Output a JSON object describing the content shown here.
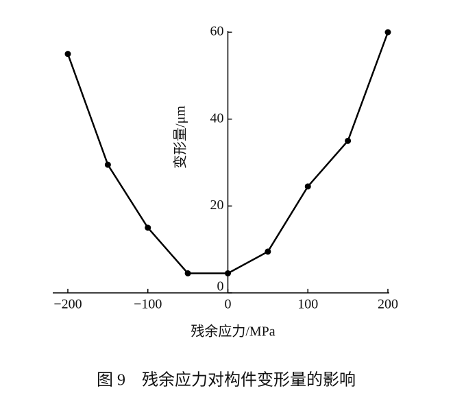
{
  "chart_data": {
    "type": "line",
    "caption": "图 9　残余应力对构件变形量的影响",
    "x_label": "残余应力/MPa",
    "y_label": "变形量/μm",
    "x": [
      -200,
      -150,
      -100,
      -50,
      0,
      50,
      100,
      150,
      200
    ],
    "series": [
      {
        "color": "#000000",
        "values": [
          55,
          29.5,
          15,
          4.5,
          4.5,
          9.5,
          24.5,
          35,
          60
        ]
      }
    ],
    "xlim": [
      -200,
      200
    ],
    "ylim": [
      0,
      60
    ],
    "xticks": [
      {
        "value": -200,
        "label": "−200"
      },
      {
        "value": -100,
        "label": "−100"
      },
      0,
      100,
      200
    ],
    "yticks": [
      0,
      20,
      40,
      60
    ]
  }
}
